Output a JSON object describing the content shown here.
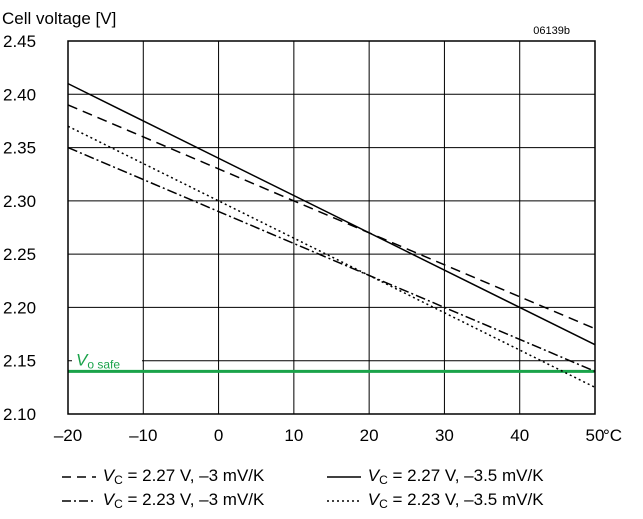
{
  "chart_data": {
    "type": "line",
    "ylabel": "Cell voltage [V]",
    "code": "06139b",
    "x_ticks": [
      "–20",
      "–10",
      "0",
      "10",
      "20",
      "30",
      "40",
      "50"
    ],
    "x_unit": "°C",
    "y_ticks": [
      "2.10",
      "2.15",
      "2.20",
      "2.25",
      "2.30",
      "2.35",
      "2.40",
      "2.45"
    ],
    "xlim": [
      -20,
      50
    ],
    "ylim": [
      2.1,
      2.45
    ],
    "grid": true,
    "threshold": {
      "label_main": "V",
      "label_sub": "o safe",
      "value": 2.14,
      "color": "#1aa34a"
    },
    "series": [
      {
        "name": "2.27 V, –3 mV/K",
        "style": "dashed",
        "x": [
          -20,
          50
        ],
        "values": [
          2.39,
          2.18
        ]
      },
      {
        "name": "2.27 V, –3.5 mV/K",
        "style": "solid",
        "x": [
          -20,
          50
        ],
        "values": [
          2.41,
          2.165
        ]
      },
      {
        "name": "2.23 V, –3 mV/K",
        "style": "dashdot",
        "x": [
          -20,
          50
        ],
        "values": [
          2.35,
          2.14
        ]
      },
      {
        "name": "2.23 V, –3.5 mV/K",
        "style": "dotted",
        "x": [
          -20,
          50
        ],
        "values": [
          2.37,
          2.125
        ]
      }
    ]
  },
  "legend": {
    "vc_main": "V",
    "vc_sub": "C",
    "entries": [
      {
        "text": " = 2.27 V, –3 mV/K"
      },
      {
        "text": " = 2.27 V, –3.5 mV/K"
      },
      {
        "text": " = 2.23 V, –3 mV/K"
      },
      {
        "text": " = 2.23 V, –3.5 mV/K"
      }
    ]
  }
}
